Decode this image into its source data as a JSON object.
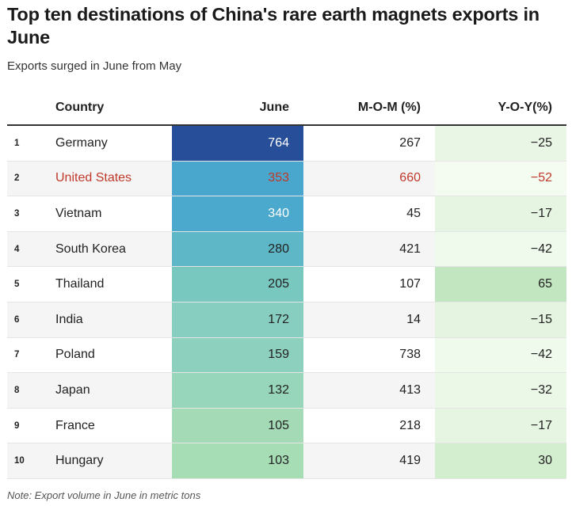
{
  "title": "Top ten destinations of China's rare earth magnets exports in June",
  "subtitle": "Exports surged in June from May",
  "note": "Note: Export volume in June in metric tons",
  "columns": [
    "",
    "Country",
    "June",
    "M-O-M (%)",
    "Y-O-Y(%)"
  ],
  "highlight_color": "#c0392b",
  "chart_data": {
    "type": "table",
    "title": "Top ten destinations of China's rare earth magnets exports in June",
    "subtitle": "Exports surged in June from May",
    "columns": [
      "",
      "Country",
      "June",
      "M-O-M (%)",
      "Y-O-Y(%)"
    ],
    "rows": [
      {
        "rank": "1",
        "country": "Germany",
        "june": "764",
        "june_value": 764,
        "mom": "267",
        "yoy": "−25",
        "yoy_value": -25,
        "june_color": "#264e99",
        "yoy_color": "#e9f6e5",
        "highlight": false
      },
      {
        "rank": "2",
        "country": "United States",
        "june": "353",
        "june_value": 353,
        "mom": "660",
        "yoy": "−52",
        "yoy_value": -52,
        "june_color": "#49a6cc",
        "yoy_color": "#f4fbf1",
        "highlight": true
      },
      {
        "rank": "3",
        "country": "Vietnam",
        "june": "340",
        "june_value": 340,
        "mom": "45",
        "yoy": "−17",
        "yoy_value": -17,
        "june_color": "#4aa9cc",
        "yoy_color": "#e6f4e2",
        "highlight": false
      },
      {
        "rank": "4",
        "country": "South Korea",
        "june": "280",
        "june_value": 280,
        "mom": "421",
        "yoy": "−42",
        "yoy_value": -42,
        "june_color": "#5db7c7",
        "yoy_color": "#eff9ec",
        "highlight": false
      },
      {
        "rank": "5",
        "country": "Thailand",
        "june": "205",
        "june_value": 205,
        "mom": "107",
        "yoy": "65",
        "yoy_value": 65,
        "june_color": "#78c8c0",
        "yoy_color": "#c2e6c0",
        "highlight": false
      },
      {
        "rank": "6",
        "country": "India",
        "june": "172",
        "june_value": 172,
        "mom": "14",
        "yoy": "−15",
        "yoy_value": -15,
        "june_color": "#87cec0",
        "yoy_color": "#e4f4e0",
        "highlight": false
      },
      {
        "rank": "7",
        "country": "Poland",
        "june": "159",
        "june_value": 159,
        "mom": "738",
        "yoy": "−42",
        "yoy_value": -42,
        "june_color": "#8dd0bd",
        "yoy_color": "#eff9ec",
        "highlight": false
      },
      {
        "rank": "8",
        "country": "Japan",
        "june": "132",
        "june_value": 132,
        "mom": "413",
        "yoy": "−32",
        "yoy_value": -32,
        "june_color": "#98d6bb",
        "yoy_color": "#ebf7e7",
        "highlight": false
      },
      {
        "rank": "9",
        "country": "France",
        "june": "105",
        "june_value": 105,
        "mom": "218",
        "yoy": "−17",
        "yoy_value": -17,
        "june_color": "#a4dbb6",
        "yoy_color": "#e6f4e2",
        "highlight": false
      },
      {
        "rank": "10",
        "country": "Hungary",
        "june": "103",
        "june_value": 103,
        "mom": "419",
        "yoy": "30",
        "yoy_value": 30,
        "june_color": "#a6ddb5",
        "yoy_color": "#d3edcf",
        "highlight": false
      }
    ]
  }
}
